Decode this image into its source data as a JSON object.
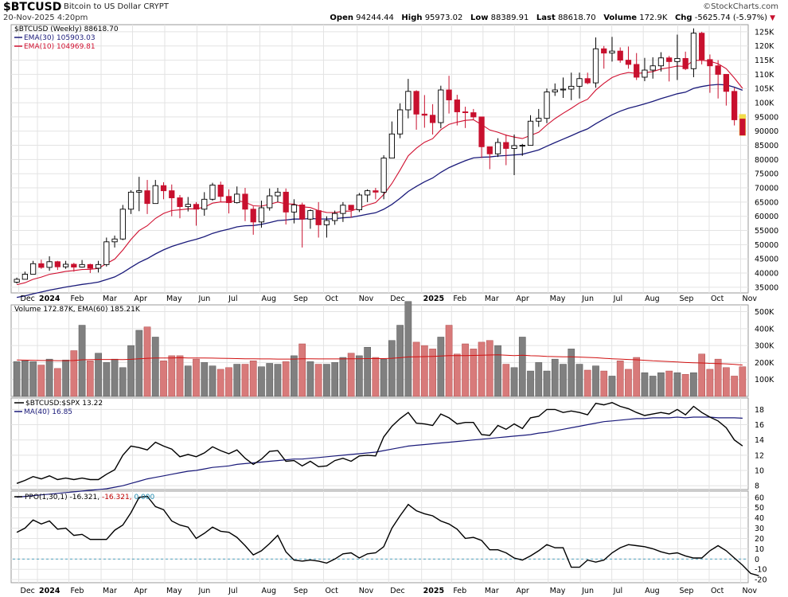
{
  "header": {
    "symbol": "$BTCUSD",
    "description": "Bitcoin to US Dollar",
    "exchange": "CRYPT",
    "date": "20-Nov-2025 4:20pm",
    "brand": "StockCharts.com",
    "copyright": "©",
    "open_label": "Open",
    "open": "94244.44",
    "high_label": "High",
    "high": "95973.02",
    "low_label": "Low",
    "low": "88389.91",
    "last_label": "Last",
    "last": "88618.70",
    "volume_label": "Volume",
    "volume": "172.9K",
    "chg_label": "Chg",
    "chg": "-5625.74 (-5.97%)"
  },
  "colors": {
    "up": "#000000",
    "down": "#c8102e",
    "ema30": "#1a1a7a",
    "ema10": "#d01030",
    "vol_up": "#808080",
    "vol_down": "#d87a7a",
    "vol_ema": "#d01010",
    "ratio": "#000000",
    "ma40": "#1a1a7a",
    "ppo": "#000000",
    "grid": "#e3e3e3",
    "last_bar": "#f2dc4a"
  },
  "legends": {
    "price": "$BTCUSD (Weekly) 88618.70",
    "ema30": "EMA(30) 105903.03",
    "ema10": "EMA(10) 104969.81",
    "volume": "Volume 172.87K, EMA(60) 185.21K",
    "ratio": "$BTCUSD:$SPX 13.22",
    "ma40": "MA(40) 16.85",
    "ppo_label": "PPO(1,30,1)",
    "ppo_v1": "-16.321,",
    "ppo_v2": "-16.321,",
    "ppo_v3": "0.000"
  },
  "chart_data": [
    {
      "type": "candlestick",
      "title": "$BTCUSD (Weekly)",
      "x_axis_labels": [
        "Dec",
        "2024",
        "Feb",
        "Mar",
        "Apr",
        "May",
        "Jun",
        "Jul",
        "Aug",
        "Sep",
        "Oct",
        "Nov",
        "Dec",
        "2025",
        "Feb",
        "Mar",
        "Apr",
        "May",
        "Jun",
        "Jul",
        "Aug",
        "Sep",
        "Oct",
        "Nov"
      ],
      "y_ticks": [
        "35000",
        "40000",
        "45000",
        "50000",
        "55000",
        "60000",
        "65000",
        "70000",
        "75000",
        "80000",
        "85000",
        "90000",
        "95000",
        "100K",
        "105K",
        "110K",
        "115K",
        "120K",
        "125K"
      ],
      "ylim": [
        33000,
        127500
      ],
      "closes": [
        37800,
        39600,
        43300,
        42000,
        44000,
        42200,
        43100,
        42100,
        43000,
        41700,
        43000,
        51000,
        52000,
        62500,
        68500,
        69000,
        64500,
        70800,
        69000,
        66500,
        63400,
        64200,
        62500,
        66000,
        71000,
        67000,
        64800,
        67800,
        62500,
        58000,
        63000,
        67200,
        68500,
        61500,
        64000,
        59000,
        62000,
        57000,
        58500,
        61000,
        63900,
        62300,
        67500,
        69000,
        68500,
        80500,
        89000,
        97500,
        104000,
        96000,
        95600,
        93000,
        104500,
        101000,
        96800,
        96500,
        95000,
        84500,
        82000,
        86000,
        83900,
        84900,
        85000,
        93500,
        94500,
        103800,
        104500,
        104800,
        105800,
        108500,
        107000,
        119000,
        117500,
        118200,
        115000,
        113500,
        109000,
        111500,
        113000,
        115800,
        114500,
        115600,
        112000,
        124500,
        115200,
        113000,
        110000,
        104000,
        94000,
        88618.7
      ],
      "highs": [
        38400,
        40500,
        44300,
        44700,
        45900,
        44300,
        44300,
        43600,
        44600,
        43300,
        44300,
        52500,
        53200,
        64000,
        69200,
        73900,
        72800,
        72800,
        72000,
        71200,
        67500,
        66800,
        65000,
        68500,
        71800,
        72200,
        69500,
        70500,
        70000,
        63500,
        65500,
        69800,
        70000,
        69800,
        66000,
        64800,
        62400,
        65000,
        60000,
        62000,
        65000,
        64000,
        68200,
        69500,
        70000,
        81500,
        93400,
        99800,
        108400,
        104400,
        102700,
        99500,
        106000,
        109500,
        102800,
        98600,
        97800,
        95000,
        84600,
        87500,
        88800,
        88800,
        85500,
        95600,
        97800,
        105000,
        106800,
        108900,
        110600,
        110600,
        110600,
        123000,
        120000,
        123200,
        119500,
        119800,
        117500,
        115800,
        116000,
        117800,
        116500,
        124000,
        118000,
        126200,
        125000,
        117000,
        115000,
        107000,
        105300,
        95973
      ],
      "lows": [
        36300,
        37800,
        40000,
        41500,
        40800,
        41100,
        41500,
        40500,
        41900,
        40000,
        40200,
        42300,
        49000,
        51600,
        60800,
        61800,
        60800,
        64600,
        66000,
        60000,
        59300,
        61700,
        56700,
        60200,
        65500,
        65000,
        61000,
        64500,
        58300,
        53500,
        56000,
        62000,
        65000,
        57100,
        57500,
        49000,
        55600,
        52500,
        52500,
        57000,
        58000,
        59500,
        61500,
        65000,
        66000,
        66000,
        80500,
        87500,
        94500,
        90500,
        91200,
        88800,
        91000,
        96200,
        92000,
        91100,
        94000,
        80500,
        76600,
        80900,
        78000,
        74500,
        81300,
        85100,
        91500,
        92800,
        102400,
        101700,
        100900,
        101500,
        106500,
        105300,
        112000,
        114500,
        114100,
        112000,
        108000,
        107600,
        108500,
        111000,
        107500,
        108000,
        111500,
        109000,
        113500,
        103500,
        101500,
        99000,
        92000,
        88389
      ],
      "opens": [
        36800,
        37800,
        39600,
        43300,
        42000,
        44000,
        42200,
        43100,
        42100,
        43000,
        41700,
        43000,
        51000,
        52000,
        62500,
        68500,
        69000,
        64500,
        70800,
        69000,
        66500,
        63400,
        64200,
        62500,
        66000,
        71000,
        67000,
        64800,
        67800,
        62500,
        58000,
        63000,
        67200,
        68500,
        61500,
        64000,
        59000,
        62000,
        57000,
        58500,
        61000,
        63900,
        62300,
        67500,
        69000,
        68500,
        80500,
        89000,
        97500,
        104000,
        96000,
        95600,
        93000,
        104500,
        101000,
        96800,
        96500,
        95000,
        84500,
        82000,
        86000,
        83900,
        84900,
        85000,
        93500,
        94500,
        103800,
        104500,
        104800,
        105800,
        108500,
        107000,
        119000,
        117500,
        118200,
        115000,
        113500,
        109000,
        111500,
        113000,
        115800,
        114500,
        115600,
        112000,
        124500,
        115200,
        113000,
        110000,
        104000,
        94244.44
      ]
    },
    {
      "type": "bar",
      "title": "Volume",
      "y_ticks": [
        "100K",
        "200K",
        "300K",
        "400K",
        "500K"
      ],
      "ylim": [
        0,
        540000
      ],
      "values": [
        205000,
        210000,
        205000,
        185000,
        220000,
        165000,
        215000,
        270000,
        420000,
        210000,
        255000,
        200000,
        220000,
        170000,
        300000,
        390000,
        410000,
        350000,
        210000,
        240000,
        240000,
        180000,
        220000,
        200000,
        180000,
        160000,
        170000,
        190000,
        190000,
        210000,
        175000,
        195000,
        190000,
        205000,
        240000,
        310000,
        205000,
        190000,
        190000,
        200000,
        230000,
        255000,
        240000,
        290000,
        230000,
        220000,
        330000,
        420000,
        560000,
        320000,
        300000,
        280000,
        350000,
        420000,
        250000,
        310000,
        280000,
        320000,
        330000,
        300000,
        190000,
        170000,
        350000,
        150000,
        200000,
        150000,
        220000,
        190000,
        280000,
        190000,
        155000,
        180000,
        150000,
        120000,
        210000,
        160000,
        230000,
        140000,
        120000,
        140000,
        150000,
        140000,
        130000,
        140000,
        250000,
        160000,
        220000,
        170000,
        120000,
        175000
      ],
      "ema60": [
        215000,
        214000,
        213000,
        212000,
        212000,
        211000,
        211000,
        212000,
        216000,
        217000,
        218000,
        218000,
        218000,
        217000,
        219000,
        222000,
        225000,
        227000,
        227000,
        227000,
        228000,
        227000,
        227000,
        227000,
        226000,
        225000,
        224000,
        223000,
        222000,
        222000,
        221000,
        221000,
        220000,
        220000,
        220000,
        222000,
        222000,
        221000,
        221000,
        221000,
        221000,
        222000,
        222000,
        223000,
        223000,
        223000,
        225000,
        228000,
        233000,
        234000,
        235000,
        236000,
        238000,
        241000,
        241000,
        241000,
        242000,
        243000,
        244000,
        245000,
        243000,
        241000,
        243000,
        240000,
        239000,
        236000,
        235000,
        234000,
        234000,
        232000,
        230000,
        228000,
        225000,
        222000,
        220000,
        218000,
        216000,
        213000,
        210000,
        208000,
        205000,
        203000,
        200000,
        198000,
        197000,
        195000,
        194000,
        192000,
        189000,
        185210
      ]
    },
    {
      "type": "line",
      "title": "$BTCUSD:$SPX",
      "y_ticks": [
        "8",
        "10",
        "12",
        "14",
        "16",
        "18"
      ],
      "ylim": [
        7.5,
        19.5
      ],
      "ratio": [
        8.3,
        8.7,
        9.2,
        8.9,
        9.3,
        8.8,
        9.0,
        8.8,
        9.0,
        8.8,
        8.8,
        9.5,
        10.1,
        12.0,
        13.2,
        13.0,
        12.7,
        13.7,
        13.2,
        12.8,
        11.8,
        12.1,
        11.8,
        12.3,
        13.1,
        12.6,
        12.2,
        12.7,
        11.6,
        10.8,
        11.5,
        12.5,
        12.6,
        11.2,
        11.3,
        10.6,
        11.2,
        10.5,
        10.6,
        11.3,
        11.6,
        11.2,
        11.9,
        12.0,
        11.9,
        14.4,
        15.8,
        16.8,
        17.6,
        16.2,
        16.1,
        15.9,
        17.4,
        16.9,
        16.1,
        16.3,
        16.3,
        14.7,
        14.6,
        15.9,
        15.4,
        16.1,
        15.5,
        16.9,
        17.1,
        18.0,
        18.0,
        17.6,
        17.8,
        17.6,
        17.3,
        18.8,
        18.6,
        18.9,
        18.4,
        18.1,
        17.6,
        17.2,
        17.4,
        17.6,
        17.4,
        18.0,
        17.3,
        18.4,
        17.6,
        17.0,
        16.5,
        15.6,
        14.0,
        13.22
      ],
      "ma40": [
        6.5,
        6.6,
        6.7,
        6.8,
        6.9,
        7.0,
        7.1,
        7.2,
        7.3,
        7.4,
        7.5,
        7.6,
        7.8,
        8.0,
        8.3,
        8.6,
        8.9,
        9.1,
        9.3,
        9.5,
        9.7,
        9.9,
        10.0,
        10.2,
        10.4,
        10.5,
        10.6,
        10.8,
        10.9,
        11.0,
        11.1,
        11.2,
        11.3,
        11.4,
        11.5,
        11.5,
        11.6,
        11.7,
        11.8,
        11.9,
        12.0,
        12.1,
        12.2,
        12.3,
        12.4,
        12.6,
        12.8,
        13.0,
        13.2,
        13.3,
        13.4,
        13.5,
        13.6,
        13.7,
        13.8,
        13.9,
        14.0,
        14.1,
        14.2,
        14.3,
        14.4,
        14.5,
        14.6,
        14.7,
        14.9,
        15.0,
        15.2,
        15.4,
        15.6,
        15.8,
        16.0,
        16.2,
        16.4,
        16.5,
        16.6,
        16.7,
        16.8,
        16.8,
        16.9,
        16.9,
        16.9,
        17.0,
        16.9,
        17.0,
        17.0,
        17.0,
        16.9,
        16.9,
        16.9,
        16.85
      ]
    },
    {
      "type": "line",
      "title": "PPO(1,30,1)",
      "x_axis_labels": [
        "Dec",
        "2024",
        "Feb",
        "Mar",
        "Apr",
        "May",
        "Jun",
        "Jul",
        "Aug",
        "Sep",
        "Oct",
        "Nov",
        "Dec",
        "2025",
        "Feb",
        "Mar",
        "Apr",
        "May",
        "Jun",
        "Jul",
        "Aug",
        "Sep",
        "Oct",
        "Nov"
      ],
      "y_ticks": [
        "-20",
        "-10",
        "0",
        "10",
        "20",
        "30",
        "40",
        "50",
        "60"
      ],
      "ylim": [
        -23,
        66
      ],
      "ppo": [
        26,
        30,
        38,
        34,
        37,
        29,
        30,
        23,
        24,
        19,
        19,
        19,
        28,
        33,
        45,
        60,
        61,
        51,
        48,
        37,
        33,
        31,
        20,
        25,
        31,
        27,
        26,
        21,
        13,
        4,
        8,
        15,
        23,
        7,
        -1,
        -2,
        -1,
        -2,
        -4,
        0,
        5,
        6,
        1,
        5,
        6,
        12,
        30,
        42,
        53,
        47,
        44,
        42,
        37,
        34,
        29,
        20,
        21,
        18,
        9,
        9,
        6,
        1,
        -1,
        3,
        8,
        14,
        11,
        11,
        -8,
        -8,
        -1,
        -3,
        -1,
        6,
        11,
        14,
        13,
        12,
        10,
        7,
        5,
        6,
        3,
        1,
        1,
        8,
        13,
        8,
        1,
        -6,
        -14,
        -16.3
      ]
    }
  ]
}
